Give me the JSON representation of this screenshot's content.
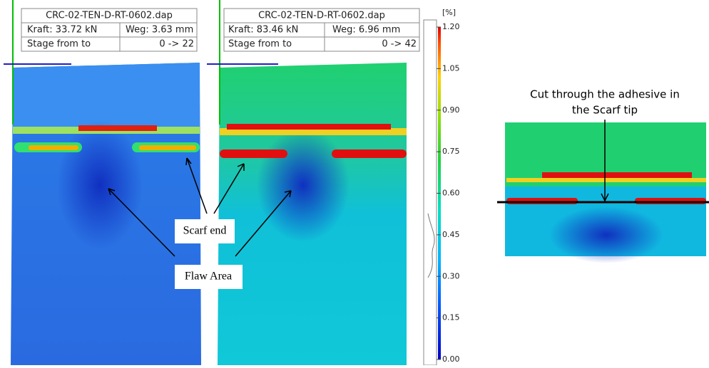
{
  "panels": [
    {
      "title": "CRC-02-TEN-D-RT-0602.dap",
      "force": "Kraft: 33.72 kN",
      "displacement": "Weg: 3.63 mm",
      "stage_label": "Stage from to",
      "stage_value": "0 -> 22"
    },
    {
      "title": "CRC-02-TEN-D-RT-0602.dap",
      "force": "Kraft: 83.46 kN",
      "displacement": "Weg: 6.96 mm",
      "stage_label": "Stage from to",
      "stage_value": "0 -> 42"
    }
  ],
  "colorbar": {
    "unit": "[%]",
    "ticks": [
      "1.20",
      "1.05",
      "0.90",
      "0.75",
      "0.60",
      "0.45",
      "0.30",
      "0.15",
      "0.00"
    ]
  },
  "annotations": {
    "scarf_end": "Scarf end",
    "flaw_area": "Flaw Area",
    "cut_caption": [
      "Cut through the adhesive in",
      "the Scarf tip"
    ]
  }
}
